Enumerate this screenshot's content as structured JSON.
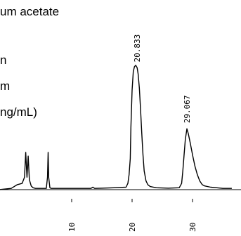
{
  "legend": {
    "lines": [
      "um acetate",
      "n",
      "m",
      "ng/mL)"
    ]
  },
  "chart_data": {
    "type": "line",
    "title": "",
    "xlabel": "",
    "ylabel": "",
    "xlim": [
      -3,
      37
    ],
    "ylim": [
      0,
      100
    ],
    "x_ticks": [
      {
        "value": 10,
        "label": "10"
      },
      {
        "value": 20,
        "label": "20"
      },
      {
        "value": 30,
        "label": "30"
      }
    ],
    "peak_labels": [
      {
        "x": 20.833,
        "label": "20.833"
      },
      {
        "x": 29.067,
        "label": "29.067"
      }
    ],
    "series": [
      {
        "x": [
          -2.0,
          0.0,
          1.0,
          1.8,
          2.2,
          2.4,
          2.6,
          2.8,
          3.0,
          3.3,
          3.6,
          4.0,
          5.0,
          5.8,
          6.0,
          6.1,
          6.2,
          6.4,
          6.6,
          7.0,
          9.0,
          12.0,
          13.2,
          13.5,
          13.8,
          15.0,
          17.0,
          19.0,
          19.3,
          19.5,
          19.7,
          19.8,
          20.0,
          20.2,
          20.4,
          20.6,
          20.833,
          21.0,
          21.2,
          21.4,
          21.6,
          21.8,
          22.0,
          22.3,
          22.6,
          23.0,
          24.0,
          26.0,
          27.8,
          28.2,
          28.4,
          28.6,
          28.8,
          29.067,
          29.3,
          29.6,
          30.0,
          30.4,
          30.8,
          31.2,
          31.6,
          32.0,
          33.0,
          34.0,
          35.0,
          36.5
        ],
        "y": [
          0,
          1,
          4,
          5,
          10,
          30,
          10,
          27,
          8,
          3,
          1.5,
          1,
          1,
          1,
          10,
          30,
          10,
          1.5,
          1,
          1,
          1,
          1,
          1,
          2,
          1,
          1.2,
          1.5,
          2,
          5,
          12,
          25,
          50,
          80,
          95,
          99,
          100,
          98,
          93,
          82,
          65,
          45,
          28,
          15,
          7,
          4,
          2.5,
          1.5,
          1.2,
          1.5,
          5,
          15,
          28,
          40,
          49,
          45,
          38,
          28,
          19,
          12,
          7,
          4,
          3,
          2,
          1.5,
          1,
          1
        ]
      }
    ]
  }
}
